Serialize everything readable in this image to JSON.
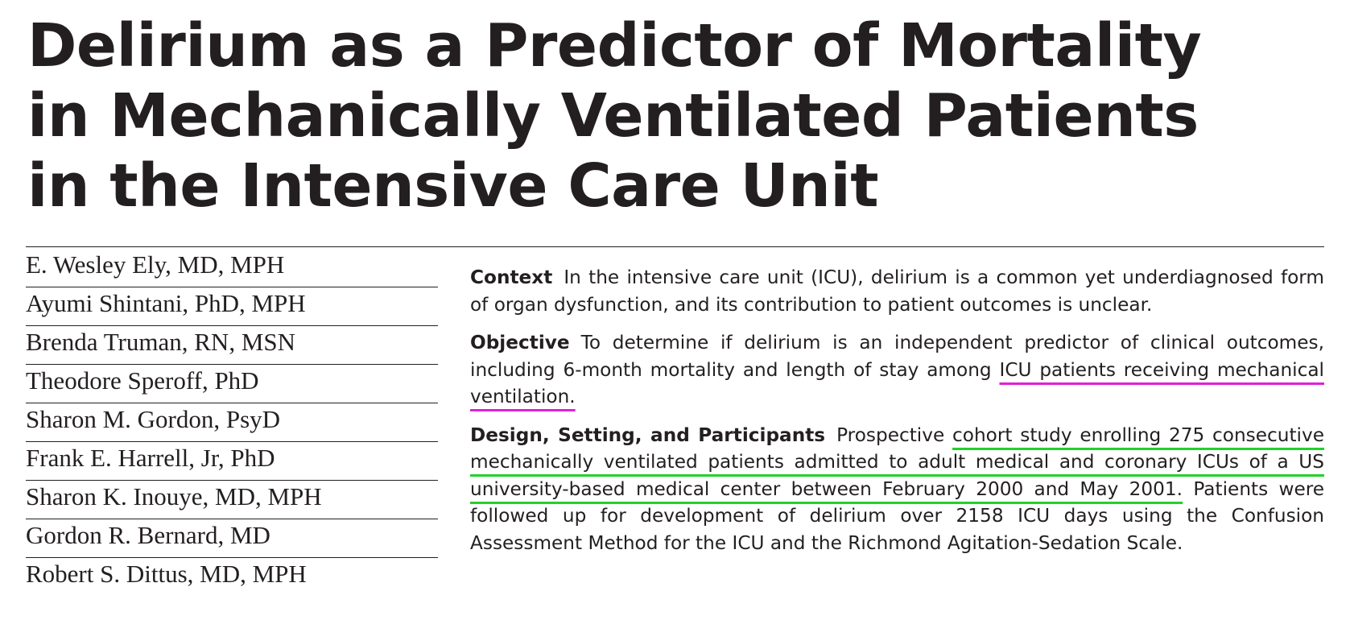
{
  "title_lines": [
    "Delirium as a Predictor of Mortality",
    "in Mechanically Ventilated Patients",
    "in the Intensive Care Unit"
  ],
  "authors": [
    "E. Wesley Ely, MD, MPH",
    "Ayumi Shintani, PhD, MPH",
    "Brenda Truman, RN, MSN",
    "Theodore Speroff, PhD",
    "Sharon M. Gordon, PsyD",
    "Frank E. Harrell, Jr, PhD",
    "Sharon K. Inouye, MD, MPH",
    "Gordon R. Bernard, MD",
    "Robert S. Dittus, MD, MPH"
  ],
  "abstract": {
    "context": {
      "label": "Context",
      "text": "In the intensive care unit (ICU), delirium is a common yet underdiagnosed form of organ dysfunction, and its contribution to patient outcomes is unclear."
    },
    "objective": {
      "label": "Objective",
      "text_plain": "To determine if delirium is an independent predictor of clinical outcomes, including 6-month mortality and length of stay among ",
      "text_highlighted": "ICU patients receiving mechanical ventilation."
    },
    "design": {
      "label": "Design, Setting, and Participants",
      "text_plain_1": "Prospective ",
      "text_highlighted": "cohort study enrolling 275 consecutive mechanically ventilated patients admitted to adult medical and coronary ICUs of a US university-based medical center between February 2000 and May 2001.",
      "text_plain_2": " Patients were followed up for development of delirium over 2158 ICU days using the Confusion Assessment Method for the ICU and the Richmond Agitation-Sedation Scale."
    }
  },
  "colors": {
    "text": "#231f20",
    "highlight_magenta": "#e21fd8",
    "highlight_green": "#22d22a"
  }
}
